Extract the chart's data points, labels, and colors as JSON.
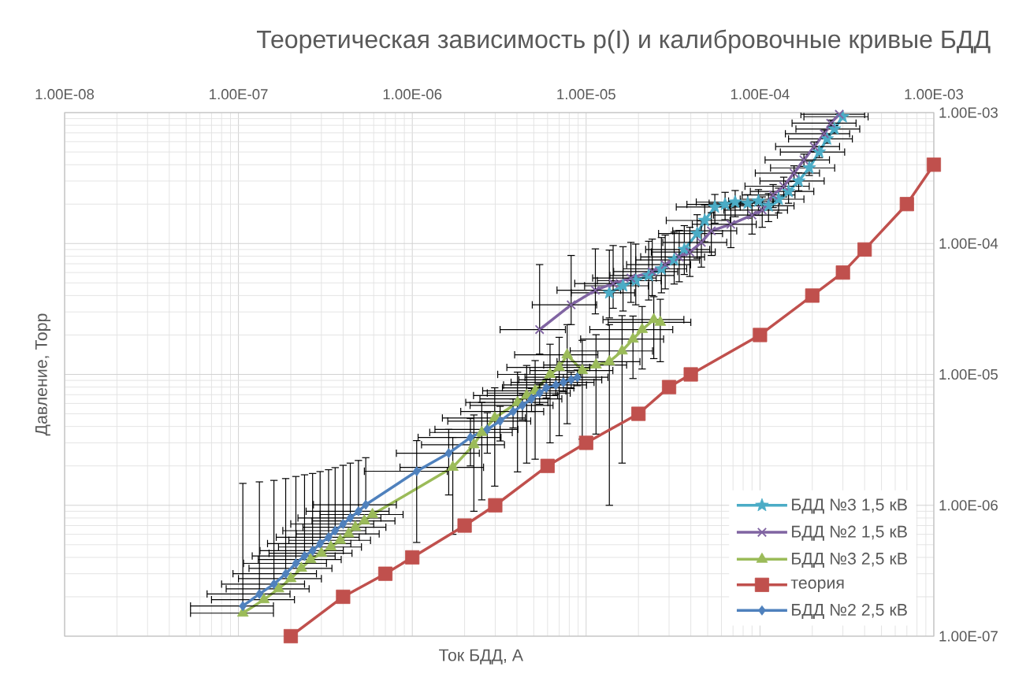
{
  "chart_data": {
    "type": "line",
    "title": "Теоретическая зависимость p(I) и калибровочные кривые БДД",
    "xlabel": "Ток БДД, А",
    "ylabel": "Давление, Торр",
    "log": "xy",
    "xlim": [
      1e-08,
      0.001
    ],
    "ylim": [
      1e-07,
      0.001
    ],
    "xticks": [
      {
        "value": 1e-08,
        "label": "1.00E-08"
      },
      {
        "value": 1e-07,
        "label": "1.00E-07"
      },
      {
        "value": 1e-06,
        "label": "1.00E-06"
      },
      {
        "value": 1e-05,
        "label": "1.00E-05"
      },
      {
        "value": 0.0001,
        "label": "1.00E-04"
      },
      {
        "value": 0.001,
        "label": "1.00E-03"
      }
    ],
    "yticks": [
      {
        "value": 1e-07,
        "label": "1.00E-07"
      },
      {
        "value": 1e-06,
        "label": "1.00E-06"
      },
      {
        "value": 1e-05,
        "label": "1.00E-05"
      },
      {
        "value": 0.0001,
        "label": "1.00E-04"
      },
      {
        "value": 0.001,
        "label": "1.00E-03"
      }
    ],
    "grid": true,
    "legend": "bottom right",
    "series": [
      {
        "name": "БДД №3 1,5 кВ",
        "color": "#4bacc6",
        "marker": "star",
        "x": [
          1.36e-05,
          1.63e-05,
          1.93e-05,
          2.29e-05,
          2.71e-05,
          3.21e-05,
          3.67e-05,
          4.35e-05,
          4.81e-05,
          5.5e-05,
          6.3e-05,
          7.2e-05,
          8.5e-05,
          9.8e-05,
          0.000112,
          0.000128,
          0.000146,
          0.000167,
          0.000192,
          0.000219,
          0.000243,
          0.000268,
          0.000299
        ],
        "values": [
          4.2e-05,
          4.75e-05,
          5.2e-05,
          5.7e-05,
          6.4e-05,
          7.5e-05,
          9e-05,
          0.000119,
          0.00015,
          0.00019,
          0.000199,
          0.000207,
          0.000203,
          0.000211,
          0.000194,
          0.000218,
          0.00025,
          0.0003,
          0.000378,
          0.0005,
          0.00063,
          0.00075,
          0.00093
        ],
        "xerrors": [
          5.4e-06,
          6.5e-06,
          7.7e-06,
          9.2e-06,
          1.08e-05,
          1.28e-05,
          1.47e-05,
          1.74e-05,
          1.92e-05,
          2.2e-05,
          2.5e-05,
          2.9e-05,
          3.4e-05,
          3.2e-05,
          4.5e-05,
          5.1e-05,
          5.8e-05,
          6.7e-05,
          7.7e-05,
          8.8e-05,
          9.7e-05,
          0.000107,
          0.00012
        ],
        "errors": [
          [
            2.7e-05,
            8.9e-05
          ],
          [
            3.05e-05,
            9.45e-05
          ],
          [
            3.4e-05,
            9.9e-05
          ],
          [
            3.7e-05,
            0.000104
          ],
          [
            4.2e-05,
            0.000111
          ],
          [
            4.9e-05,
            0.000122
          ],
          [
            5.8e-05,
            0.000137
          ],
          [
            7.7e-05,
            0.000166
          ],
          4.7e-05,
          4.7e-05,
          4.7e-05,
          4.7e-05,
          [
            0.000156,
            0.000236
          ],
          4.7e-05,
          4.7e-05,
          4.7e-05,
          4.7e-05,
          4.7e-05,
          4.7e-05,
          4.7e-05,
          4.7e-05,
          4.7e-05,
          null
        ]
      },
      {
        "name": "БДД №2 1,5 кВ",
        "color": "#8064a2",
        "marker": "cross",
        "x": [
          5.4e-06,
          8.2e-06,
          1.13e-05,
          1.43e-05,
          1.81e-05,
          2.4e-05,
          2.85e-05,
          3.43e-05,
          3.95e-05,
          4.6e-05,
          5.25e-05,
          6.8e-05,
          9e-05,
          0.000103,
          0.000119,
          0.000137,
          0.000157,
          0.000179,
          0.000205,
          0.000234,
          0.000255,
          0.000286
        ],
        "values": [
          2.2e-05,
          3.4e-05,
          4.4e-05,
          4.95e-05,
          5.45e-05,
          6.1e-05,
          6.9e-05,
          7.9e-05,
          8.6e-05,
          0.000102,
          0.000125,
          0.00014,
          0.000165,
          0.00018,
          0.000235,
          0.000274,
          0.000345,
          0.000435,
          0.00055,
          0.00069,
          0.00083,
          0.00097
        ],
        "xerrors": [
          2.2e-06,
          3.3e-06,
          4.5e-06,
          5.7e-06,
          7.2e-06,
          9.6e-06,
          1.14e-05,
          1.37e-05,
          1.58e-05,
          1.84e-05,
          2.1e-05,
          2.72e-05,
          3.6e-05,
          4.1e-05,
          4e-05,
          5.5e-05,
          6.3e-05,
          7.2e-05,
          8.2e-05,
          9.4e-05,
          0.000102,
          0.000114
        ],
        "errors": [
          [
            1.43e-05,
            6.9e-05
          ],
          [
            2.4e-05,
            8.1e-05
          ],
          [
            2.9e-05,
            9.1e-05
          ],
          [
            3.2e-05,
            9.65e-05
          ],
          [
            3.55e-05,
            0.000102
          ],
          [
            4e-05,
            0.000108
          ],
          [
            4.5e-05,
            0.000116
          ],
          [
            5.1e-05,
            0.000126
          ],
          [
            5.6e-05,
            0.000133
          ],
          [
            6.6e-05,
            0.000149
          ],
          [
            8.1e-05,
            0.000172
          ],
          4.7e-05,
          4.7e-05,
          4.7e-05,
          4.7e-05,
          4.7e-05,
          4.7e-05,
          4.7e-05,
          4.7e-05,
          4.7e-05,
          4.7e-05,
          null
        ]
      },
      {
        "name": "БДД №3 2,5 кВ",
        "color": "#9bbb59",
        "marker": "triangle",
        "x": [
          1.06e-07,
          1.4e-07,
          1.7e-07,
          2e-07,
          2.3e-07,
          2.6e-07,
          3e-07,
          3.4e-07,
          3.85e-07,
          4.3e-07,
          4.7e-07,
          5.3e-07,
          5.9e-07,
          1.71e-06,
          2.26e-06,
          2.51e-06,
          2.98e-06,
          4.03e-06,
          4.55e-06,
          5.09e-06,
          6.2e-06,
          7e-06,
          7.78e-06,
          9.5e-06,
          1.14e-05,
          1.36e-05,
          1.61e-05,
          1.86e-05,
          2.1e-05,
          2.45e-05,
          2.67e-05
        ],
        "values": [
          1.5e-07,
          1.9e-07,
          2.3e-07,
          2.75e-07,
          3.3e-07,
          3.85e-07,
          4.3e-07,
          4.8e-07,
          5.4e-07,
          6.05e-07,
          6.8e-07,
          7.6e-07,
          8.5e-07,
          1.95e-06,
          2.9e-06,
          3.6e-06,
          4.65e-06,
          6.1e-06,
          6.9e-06,
          7.5e-06,
          1e-05,
          1.13e-05,
          1.41e-05,
          1.07e-05,
          1.18e-05,
          1.25e-05,
          1.51e-05,
          1.86e-05,
          2.2e-05,
          2.62e-05,
          2.5e-05
        ],
        "xerrors": [
          5.3e-08,
          7e-08,
          8.5e-08,
          1e-07,
          1.15e-07,
          1.3e-07,
          1.5e-07,
          1.7e-07,
          1.9e-07,
          2.15e-07,
          2.35e-07,
          2.65e-07,
          2.95e-07,
          8.6e-07,
          1.13e-06,
          1.25e-06,
          1.49e-06,
          2e-06,
          2.3e-06,
          2.55e-06,
          3.1e-06,
          3.5e-06,
          3.9e-06,
          4.75e-06,
          5.7e-06,
          6.8e-06,
          8e-06,
          9.3e-06,
          1.05e-05,
          1.2e-05,
          1.33e-05
        ],
        "errors": [
          null,
          null,
          null,
          null,
          null,
          null,
          null,
          null,
          null,
          null,
          null,
          null,
          null,
          1.35e-06,
          2e-06,
          2.5e-06,
          3.25e-06,
          4.3e-06,
          4.8e-06,
          5.25e-06,
          7e-06,
          7.9e-06,
          9.9e-06,
          7.5e-06,
          8.3e-06,
          1.15e-05,
          1.3e-05,
          9.3e-06,
          1.1e-05,
          1.3e-05,
          1.25e-05
        ]
      },
      {
        "name": "теория",
        "color": "#c0504d",
        "marker": "square",
        "x": [
          2e-07,
          4e-07,
          7e-07,
          1e-06,
          2e-06,
          3e-06,
          6e-06,
          1e-05,
          2e-05,
          3e-05,
          4e-05,
          0.0001,
          0.0002,
          0.0003,
          0.0004,
          0.0007,
          0.001
        ],
        "values": [
          1e-07,
          2e-07,
          3e-07,
          4e-07,
          7e-07,
          1e-06,
          2e-06,
          3e-06,
          5e-06,
          8e-06,
          1e-05,
          2e-05,
          4e-05,
          6e-05,
          9e-05,
          0.0002,
          0.0004
        ]
      },
      {
        "name": "БДД №2 2,5 кВ",
        "color": "#4f81bd",
        "marker": "diamond",
        "x": [
          1.06e-07,
          1.32e-07,
          1.6e-07,
          1.87e-07,
          2.14e-07,
          2.4e-07,
          2.67e-07,
          2.95e-07,
          3.3e-07,
          3.6e-07,
          4e-07,
          4.4e-07,
          4.9e-07,
          5.4e-07,
          1.06e-06,
          1.62e-06,
          2.16e-06,
          2.7e-06,
          3.2e-06,
          3.8e-06,
          4.3e-06,
          4.85e-06,
          5.4e-06,
          5.9e-06,
          6.7e-06,
          7.4e-06,
          8.2e-06,
          8.9e-06
        ],
        "values": [
          1.7e-07,
          2.1e-07,
          2.5e-07,
          3e-07,
          3.6e-07,
          4.1e-07,
          4.5e-07,
          5.1e-07,
          5.7e-07,
          6.4e-07,
          7.2e-07,
          8e-07,
          9e-07,
          1.01e-06,
          1.82e-06,
          2.5e-06,
          3.3e-06,
          3.8e-06,
          4.4e-06,
          5.2e-06,
          5.8e-06,
          6.5e-06,
          7.2e-06,
          7.9e-06,
          8.3e-06,
          8.7e-06,
          9.1e-06,
          9.5e-06
        ],
        "xerrors": [
          5.3e-08,
          6.6e-08,
          8e-08,
          9.4e-08,
          1.07e-07,
          1.2e-07,
          1.34e-07,
          1.48e-07,
          1.65e-07,
          1.8e-07,
          2e-07,
          2.2e-07,
          2.45e-07,
          2.7e-07,
          5.3e-07,
          8.1e-07,
          1.08e-06,
          1.35e-06,
          1.6e-06,
          1.9e-06,
          2.15e-06,
          2.4e-06,
          2.7e-06,
          2.6e-06,
          3.35e-06,
          3.7e-06,
          4.1e-06,
          4.45e-06
        ],
        "errors": [
          [
            1.7e-07,
            1.47e-06
          ],
          [
            2.1e-07,
            1.51e-06
          ],
          [
            2.5e-07,
            1.55e-06
          ],
          [
            3e-07,
            1.6e-06
          ],
          [
            3.6e-07,
            1.66e-06
          ],
          [
            4.1e-07,
            1.71e-06
          ],
          [
            4.5e-07,
            1.75e-06
          ],
          [
            5.1e-07,
            1.81e-06
          ],
          [
            5.7e-07,
            1.87e-06
          ],
          [
            6.4e-07,
            1.94e-06
          ],
          [
            7.2e-07,
            2.02e-06
          ],
          [
            8e-07,
            2.1e-06
          ],
          [
            9e-07,
            2.2e-06
          ],
          [
            1.01e-06,
            2.31e-06
          ],
          1.3e-06,
          1.3e-06,
          1.3e-06,
          1.3e-06,
          1.3e-06,
          1.3e-06,
          1.3e-06,
          1.3e-06,
          1.3e-06,
          1.3e-06,
          1.3e-06,
          1.3e-06,
          1.3e-06,
          1.3e-06
        ]
      }
    ]
  }
}
